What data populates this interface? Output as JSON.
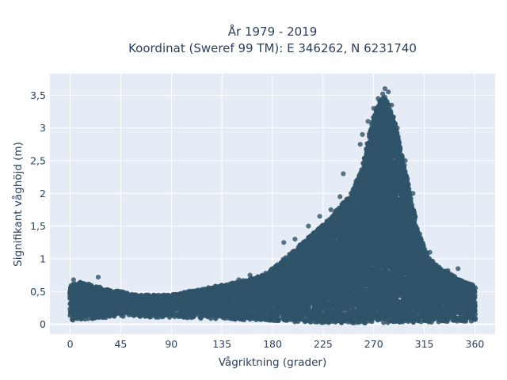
{
  "chart_data": {
    "type": "scatter",
    "title_lines": [
      "År 1979 - 2019",
      "Koordinat (Sweref 99 TM): E 346262, N 6231740"
    ],
    "xlabel": "Vågriktning (grader)",
    "ylabel": "Signifikant våghöjd (m)",
    "xlim": [
      -18,
      378
    ],
    "ylim": [
      -0.15,
      3.83
    ],
    "x_ticks": [
      0,
      45,
      90,
      135,
      180,
      225,
      270,
      315,
      360
    ],
    "x_tick_labels": [
      "0",
      "45",
      "90",
      "135",
      "180",
      "225",
      "270",
      "315",
      "360"
    ],
    "y_ticks": [
      0,
      0.5,
      1,
      1.5,
      2,
      2.5,
      3,
      3.5
    ],
    "y_tick_labels": [
      "0",
      "0,5",
      "1",
      "1,5",
      "2",
      "2,5",
      "3",
      "3,5"
    ],
    "grid": true,
    "colors": {
      "marker": "#2f5468",
      "plot_bg": "#e5ecf6",
      "grid": "#ffffff",
      "text": "#2a3f5f"
    },
    "upper_envelope": {
      "x": [
        0,
        10,
        20,
        30,
        45,
        60,
        75,
        90,
        105,
        120,
        135,
        150,
        160,
        170,
        180,
        190,
        200,
        210,
        220,
        230,
        240,
        250,
        260,
        265,
        270,
        275,
        280,
        285,
        290,
        295,
        300,
        305,
        310,
        315,
        320,
        330,
        340,
        350,
        360
      ],
      "y": [
        0.6,
        0.65,
        0.6,
        0.55,
        0.5,
        0.45,
        0.45,
        0.45,
        0.5,
        0.55,
        0.6,
        0.65,
        0.7,
        0.75,
        0.85,
        1.0,
        1.15,
        1.3,
        1.45,
        1.6,
        1.8,
        2.0,
        2.4,
        2.8,
        3.2,
        3.4,
        3.5,
        3.3,
        3.0,
        2.6,
        2.2,
        1.8,
        1.4,
        1.2,
        1.0,
        0.85,
        0.75,
        0.65,
        0.6
      ]
    },
    "lower_envelope": {
      "x": [
        0,
        45,
        90,
        135,
        180,
        225,
        270,
        315,
        360
      ],
      "y": [
        0.05,
        0.12,
        0.1,
        0.08,
        0.05,
        0.02,
        0.02,
        0.03,
        0.05
      ]
    },
    "outliers": [
      {
        "x": 25,
        "y": 0.72
      },
      {
        "x": 3,
        "y": 0.68
      },
      {
        "x": 232,
        "y": 1.75
      },
      {
        "x": 240,
        "y": 1.95
      },
      {
        "x": 243,
        "y": 2.3
      },
      {
        "x": 258,
        "y": 2.75
      },
      {
        "x": 260,
        "y": 2.9
      },
      {
        "x": 265,
        "y": 3.1
      },
      {
        "x": 270,
        "y": 3.3
      },
      {
        "x": 274,
        "y": 3.45
      },
      {
        "x": 278,
        "y": 3.52
      },
      {
        "x": 280,
        "y": 3.6
      },
      {
        "x": 283,
        "y": 3.55
      },
      {
        "x": 286,
        "y": 3.35
      },
      {
        "x": 291,
        "y": 3.0
      },
      {
        "x": 298,
        "y": 2.5
      },
      {
        "x": 305,
        "y": 2.0
      },
      {
        "x": 212,
        "y": 1.5
      },
      {
        "x": 215,
        "y": 1.35
      },
      {
        "x": 200,
        "y": 1.3
      },
      {
        "x": 190,
        "y": 1.25
      },
      {
        "x": 222,
        "y": 1.65
      },
      {
        "x": 230,
        "y": 1.5
      },
      {
        "x": 336,
        "y": 0.82
      },
      {
        "x": 345,
        "y": 0.85
      },
      {
        "x": 355,
        "y": 0.62
      },
      {
        "x": 12,
        "y": 0.6
      },
      {
        "x": 18,
        "y": 0.55
      },
      {
        "x": 150,
        "y": 0.68
      },
      {
        "x": 160,
        "y": 0.75
      },
      {
        "x": 320,
        "y": 1.1
      },
      {
        "x": 325,
        "y": 0.9
      }
    ]
  }
}
